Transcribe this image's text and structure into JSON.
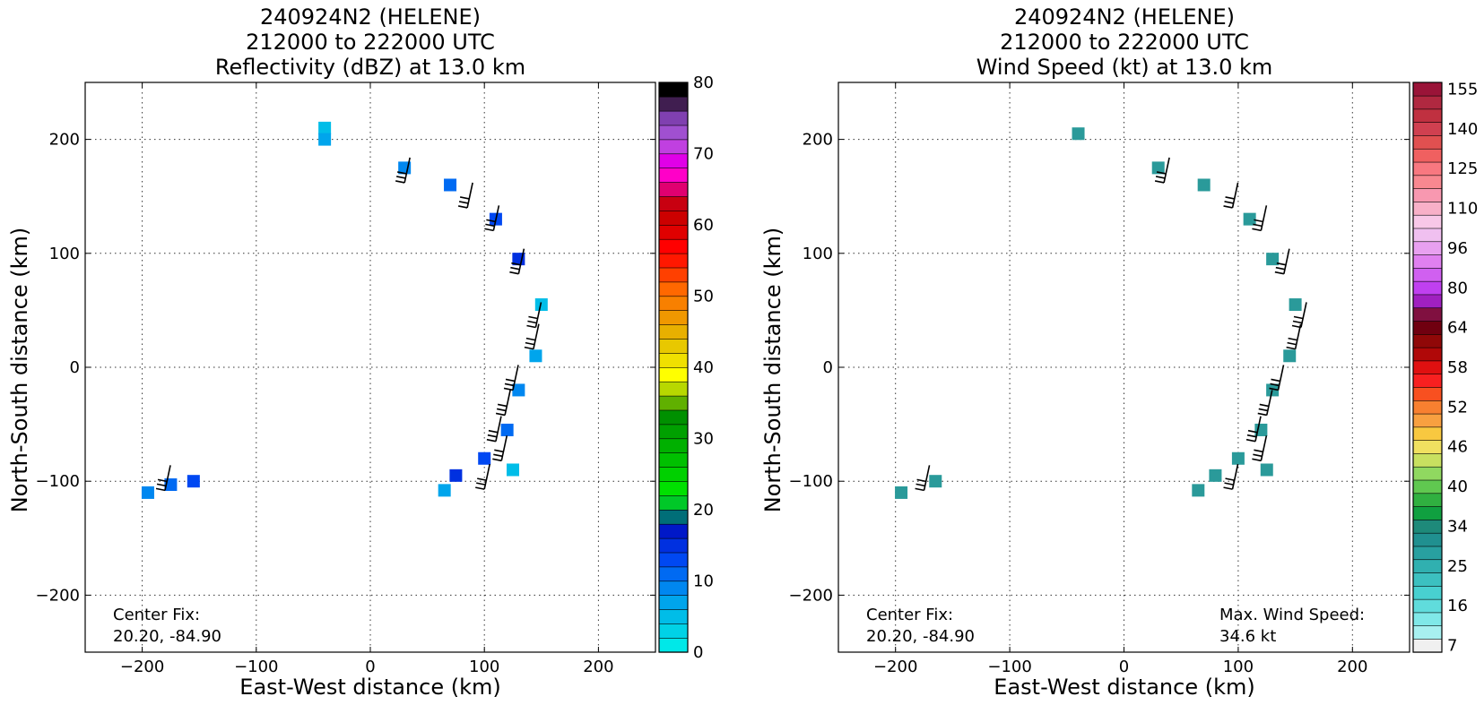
{
  "chart_data": [
    {
      "type": "heatmap",
      "title": [
        "240924N2 (HELENE)",
        "212000 to 222000 UTC",
        "Reflectivity (dBZ) at 13.0 km"
      ],
      "xlabel": "East-West distance (km)",
      "ylabel": "North-South distance (km)",
      "xlim": [
        -250,
        250
      ],
      "ylim": [
        -250,
        250
      ],
      "xticks": [
        -200,
        -100,
        0,
        100,
        200
      ],
      "yticks": [
        -200,
        -100,
        0,
        100,
        200
      ],
      "xticklabels": [
        "−200",
        "−100",
        "0",
        "100",
        "200"
      ],
      "yticklabels": [
        "−200",
        "−100",
        "0",
        "100",
        "200"
      ],
      "grid": true,
      "annotation": [
        "Center Fix:",
        "20.20, -84.90"
      ],
      "colorbar": {
        "min": 0,
        "max": 80,
        "ticks": [
          "0",
          "10",
          "20",
          "30",
          "40",
          "50",
          "60",
          "70",
          "80"
        ],
        "colors": [
          "#00e8e8",
          "#00d2e6",
          "#00bde8",
          "#00a5ec",
          "#0087f0",
          "#006af2",
          "#0048f2",
          "#0030e0",
          "#0018c8",
          "#006e78",
          "#00c828",
          "#00e000",
          "#00d000",
          "#00c000",
          "#00b000",
          "#00a000",
          "#009000",
          "#60b000",
          "#b8d800",
          "#ffff00",
          "#f0e000",
          "#e8c800",
          "#e8b000",
          "#f09800",
          "#f88000",
          "#ff6800",
          "#ff4000",
          "#ff1800",
          "#ff0000",
          "#e00000",
          "#cc0000",
          "#c80010",
          "#e00070",
          "#ff00c8",
          "#e000e8",
          "#c040e0",
          "#a050d0",
          "#8040b0",
          "#401e50",
          "#000000"
        ]
      },
      "wind_barbs_xy": [
        [
          30,
          162
        ],
        [
          85,
          140
        ],
        [
          108,
          120
        ],
        [
          130,
          82
        ],
        [
          145,
          35
        ],
        [
          143,
          16
        ],
        [
          125,
          -20
        ],
        [
          118,
          -42
        ],
        [
          110,
          -65
        ],
        [
          115,
          -82
        ],
        [
          100,
          -107
        ],
        [
          -180,
          -108
        ]
      ],
      "echo_regions_xy": [
        [
          -40,
          210
        ],
        [
          -40,
          200
        ],
        [
          30,
          175
        ],
        [
          70,
          160
        ],
        [
          110,
          130
        ],
        [
          130,
          95
        ],
        [
          150,
          55
        ],
        [
          145,
          10
        ],
        [
          130,
          -20
        ],
        [
          120,
          -55
        ],
        [
          100,
          -80
        ],
        [
          75,
          -95
        ],
        [
          125,
          -90
        ],
        [
          65,
          -108
        ],
        [
          -195,
          -110
        ],
        [
          -175,
          -103
        ],
        [
          -155,
          -100
        ]
      ]
    },
    {
      "type": "heatmap",
      "title": [
        "240924N2 (HELENE)",
        "212000 to 222000 UTC",
        "Wind Speed (kt) at 13.0 km"
      ],
      "xlabel": "East-West distance (km)",
      "ylabel": "North-South distance (km)",
      "xlim": [
        -250,
        250
      ],
      "ylim": [
        -250,
        250
      ],
      "xticks": [
        -200,
        -100,
        0,
        100,
        200
      ],
      "yticks": [
        -200,
        -100,
        0,
        100,
        200
      ],
      "xticklabels": [
        "−200",
        "−100",
        "0",
        "100",
        "200"
      ],
      "yticklabels": [
        "−200",
        "−100",
        "0",
        "100",
        "200"
      ],
      "grid": true,
      "annotation": [
        "Center Fix:",
        "20.20, -84.90"
      ],
      "annotation2": [
        "Max. Wind Speed:",
        "34.6 kt"
      ],
      "colorbar": {
        "ticks": [
          "7",
          "16",
          "25",
          "34",
          "40",
          "46",
          "52",
          "58",
          "64",
          "80",
          "96",
          "110",
          "125",
          "140",
          "155"
        ],
        "colors": [
          "#f0f0f0",
          "#a8f0f0",
          "#80e8e8",
          "#60dcdc",
          "#48d0d0",
          "#3cc0c0",
          "#30b0b0",
          "#28a0a0",
          "#209090",
          "#1e8a7a",
          "#10a040",
          "#30b040",
          "#60c850",
          "#90d860",
          "#c8e060",
          "#f0e060",
          "#f8c840",
          "#f8a040",
          "#f88030",
          "#f85020",
          "#f82020",
          "#e01010",
          "#b00808",
          "#900808",
          "#700010",
          "#801040",
          "#a020c0",
          "#c040f0",
          "#d060f0",
          "#e080f0",
          "#e8a0f0",
          "#f0c0f0",
          "#f8c8e8",
          "#f8b0c8",
          "#f898b0",
          "#f88890",
          "#f87880",
          "#f06060",
          "#e05050",
          "#d04050",
          "#c03040",
          "#b02840",
          "#9a1438"
        ]
      },
      "wind_barbs_xy": [
        [
          35,
          162
        ],
        [
          95,
          140
        ],
        [
          120,
          120
        ],
        [
          140,
          82
        ],
        [
          155,
          35
        ],
        [
          150,
          16
        ],
        [
          135,
          -20
        ],
        [
          125,
          -42
        ],
        [
          115,
          -65
        ],
        [
          120,
          -82
        ],
        [
          95,
          -107
        ],
        [
          -175,
          -108
        ]
      ],
      "echo_regions_xy": [
        [
          -40,
          205
        ],
        [
          30,
          175
        ],
        [
          70,
          160
        ],
        [
          110,
          130
        ],
        [
          130,
          95
        ],
        [
          150,
          55
        ],
        [
          145,
          10
        ],
        [
          130,
          -20
        ],
        [
          120,
          -55
        ],
        [
          100,
          -80
        ],
        [
          80,
          -95
        ],
        [
          125,
          -90
        ],
        [
          65,
          -108
        ],
        [
          -195,
          -110
        ],
        [
          -165,
          -100
        ]
      ]
    }
  ]
}
